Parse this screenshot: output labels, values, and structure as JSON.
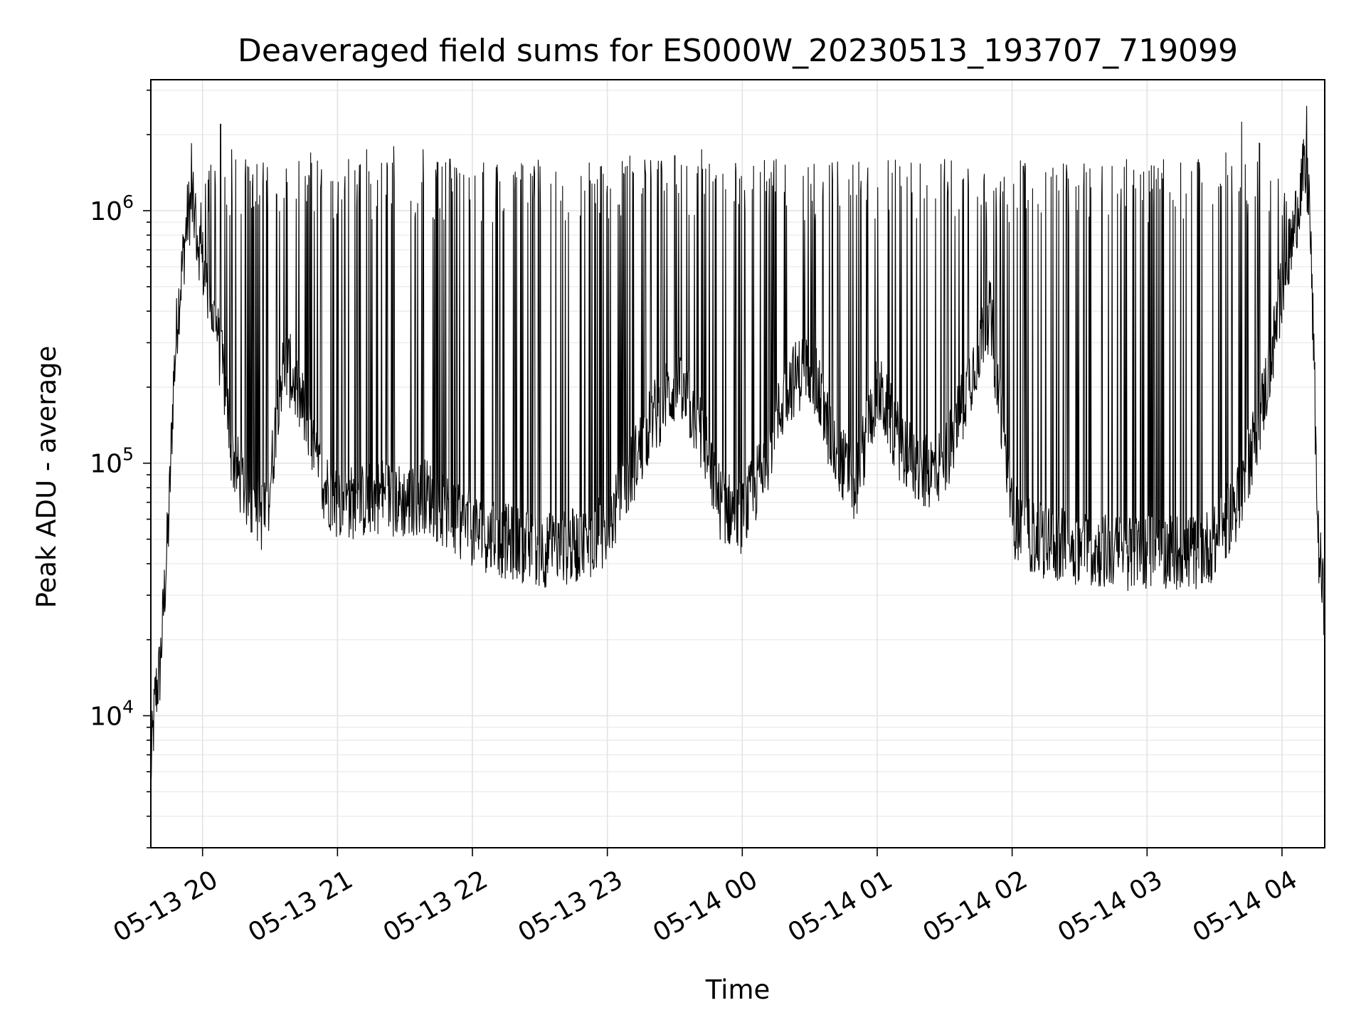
{
  "chart_data": {
    "type": "line",
    "title": "Deaveraged field sums for ES000W_20230513_193707_719099",
    "xlabel": "Time",
    "ylabel": "Peak ADU - average",
    "yscale": "log",
    "ylim": [
      3000,
      3300000
    ],
    "xlim": [
      "2023-05-13 19:37",
      "2023-05-14 04:19"
    ],
    "grid": true,
    "line_color": "#000000",
    "x_ticks": [
      {
        "label": "05-13 20",
        "time": "2023-05-13 20:00"
      },
      {
        "label": "05-13 21",
        "time": "2023-05-13 21:00"
      },
      {
        "label": "05-13 22",
        "time": "2023-05-13 22:00"
      },
      {
        "label": "05-13 23",
        "time": "2023-05-13 23:00"
      },
      {
        "label": "05-14 00",
        "time": "2023-05-14 00:00"
      },
      {
        "label": "05-14 01",
        "time": "2023-05-14 01:00"
      },
      {
        "label": "05-14 02",
        "time": "2023-05-14 02:00"
      },
      {
        "label": "05-14 03",
        "time": "2023-05-14 03:00"
      },
      {
        "label": "05-14 04",
        "time": "2023-05-14 04:00"
      }
    ],
    "y_ticks": [
      {
        "base": "10",
        "exp": "4",
        "value": 10000
      },
      {
        "base": "10",
        "exp": "5",
        "value": 100000
      },
      {
        "base": "10",
        "exp": "6",
        "value": 1000000
      }
    ],
    "series": [
      {
        "x": [
          "2023-05-13 19:37",
          "2023-05-13 19:39",
          "2023-05-13 19:41",
          "2023-05-13 19:43",
          "2023-05-13 19:45",
          "2023-05-13 19:47",
          "2023-05-13 19:49",
          "2023-05-13 19:51",
          "2023-05-13 19:53",
          "2023-05-13 19:55",
          "2023-05-13 19:57",
          "2023-05-13 19:59",
          "2023-05-13 20:01",
          "2023-05-13 20:03",
          "2023-05-13 20:05",
          "2023-05-13 20:07",
          "2023-05-13 20:10",
          "2023-05-13 20:13",
          "2023-05-13 20:16",
          "2023-05-13 20:19",
          "2023-05-13 20:22",
          "2023-05-13 20:25",
          "2023-05-13 20:28",
          "2023-05-13 20:31",
          "2023-05-13 20:34",
          "2023-05-13 20:37",
          "2023-05-13 20:40",
          "2023-05-13 20:45",
          "2023-05-13 20:50",
          "2023-05-13 20:55",
          "2023-05-13 21:00",
          "2023-05-13 21:10",
          "2023-05-13 21:20",
          "2023-05-13 21:30",
          "2023-05-13 21:40",
          "2023-05-13 21:50",
          "2023-05-13 22:00",
          "2023-05-13 22:10",
          "2023-05-13 22:20",
          "2023-05-13 22:30",
          "2023-05-13 22:40",
          "2023-05-13 22:50",
          "2023-05-13 23:00",
          "2023-05-13 23:10",
          "2023-05-13 23:20",
          "2023-05-13 23:30",
          "2023-05-13 23:40",
          "2023-05-13 23:50",
          "2023-05-14 00:00",
          "2023-05-14 00:10",
          "2023-05-14 00:20",
          "2023-05-14 00:30",
          "2023-05-14 00:40",
          "2023-05-14 00:50",
          "2023-05-14 01:00",
          "2023-05-14 01:10",
          "2023-05-14 01:20",
          "2023-05-14 01:30",
          "2023-05-14 01:40",
          "2023-05-14 01:50",
          "2023-05-14 02:00",
          "2023-05-14 02:10",
          "2023-05-14 02:20",
          "2023-05-14 02:30",
          "2023-05-14 02:40",
          "2023-05-14 02:50",
          "2023-05-14 03:00",
          "2023-05-14 03:10",
          "2023-05-14 03:20",
          "2023-05-14 03:30",
          "2023-05-14 03:40",
          "2023-05-14 03:45",
          "2023-05-14 03:50",
          "2023-05-14 03:55",
          "2023-05-14 04:00",
          "2023-05-14 04:05",
          "2023-05-14 04:08",
          "2023-05-14 04:10",
          "2023-05-14 04:12",
          "2023-05-14 04:14",
          "2023-05-14 04:16",
          "2023-05-14 04:19"
        ],
        "baseline": [
          6000,
          12000,
          15000,
          30000,
          60000,
          200000,
          400000,
          600000,
          900000,
          1100000,
          900000,
          700000,
          550000,
          450000,
          380000,
          300000,
          200000,
          110000,
          90000,
          80000,
          70000,
          65000,
          60000,
          100000,
          200000,
          250000,
          220000,
          160000,
          100000,
          80000,
          70000,
          70000,
          75000,
          70000,
          75000,
          60000,
          55000,
          50000,
          48000,
          45000,
          46000,
          48000,
          55000,
          90000,
          150000,
          200000,
          150000,
          70000,
          60000,
          100000,
          200000,
          250000,
          120000,
          80000,
          200000,
          120000,
          90000,
          100000,
          200000,
          400000,
          60000,
          50000,
          48000,
          46000,
          45000,
          44000,
          45000,
          45000,
          44000,
          48000,
          70000,
          100000,
          150000,
          250000,
          500000,
          800000,
          1200000,
          1400000,
          1200000,
          300000,
          50000,
          25000
        ],
        "spikes": [
          {
            "time": "2023-05-13 19:55",
            "value": 1850000
          },
          {
            "time": "2023-05-13 20:08",
            "value": 2200000
          },
          {
            "time": "2023-05-13 20:13",
            "value": 1750000
          },
          {
            "time": "2023-05-13 20:20",
            "value": 1500000
          },
          {
            "time": "2023-05-13 20:27",
            "value": 1550000
          },
          {
            "time": "2023-05-13 20:48",
            "value": 1700000
          },
          {
            "time": "2023-05-13 21:05",
            "value": 1600000
          },
          {
            "time": "2023-05-13 21:13",
            "value": 1750000
          },
          {
            "time": "2023-05-13 21:25",
            "value": 1800000
          },
          {
            "time": "2023-05-13 21:38",
            "value": 1750000
          },
          {
            "time": "2023-05-13 21:50",
            "value": 1600000
          },
          {
            "time": "2023-05-13 22:05",
            "value": 1550000
          },
          {
            "time": "2023-05-13 22:30",
            "value": 1500000
          },
          {
            "time": "2023-05-13 22:52",
            "value": 1550000
          },
          {
            "time": "2023-05-13 23:10",
            "value": 1650000
          },
          {
            "time": "2023-05-13 23:30",
            "value": 1650000
          },
          {
            "time": "2023-05-13 23:42",
            "value": 1750000
          },
          {
            "time": "2023-05-14 00:15",
            "value": 1600000
          },
          {
            "time": "2023-05-14 00:40",
            "value": 1550000
          },
          {
            "time": "2023-05-14 01:10",
            "value": 1500000
          },
          {
            "time": "2023-05-14 01:30",
            "value": 1600000
          },
          {
            "time": "2023-05-14 02:05",
            "value": 1500000
          },
          {
            "time": "2023-05-14 02:40",
            "value": 1500000
          },
          {
            "time": "2023-05-14 03:15",
            "value": 1550000
          },
          {
            "time": "2023-05-14 03:35",
            "value": 1700000
          },
          {
            "time": "2023-05-14 03:42",
            "value": 2250000
          },
          {
            "time": "2023-05-14 03:50",
            "value": 1850000
          },
          {
            "time": "2023-05-14 04:11",
            "value": 2600000
          }
        ]
      }
    ]
  }
}
